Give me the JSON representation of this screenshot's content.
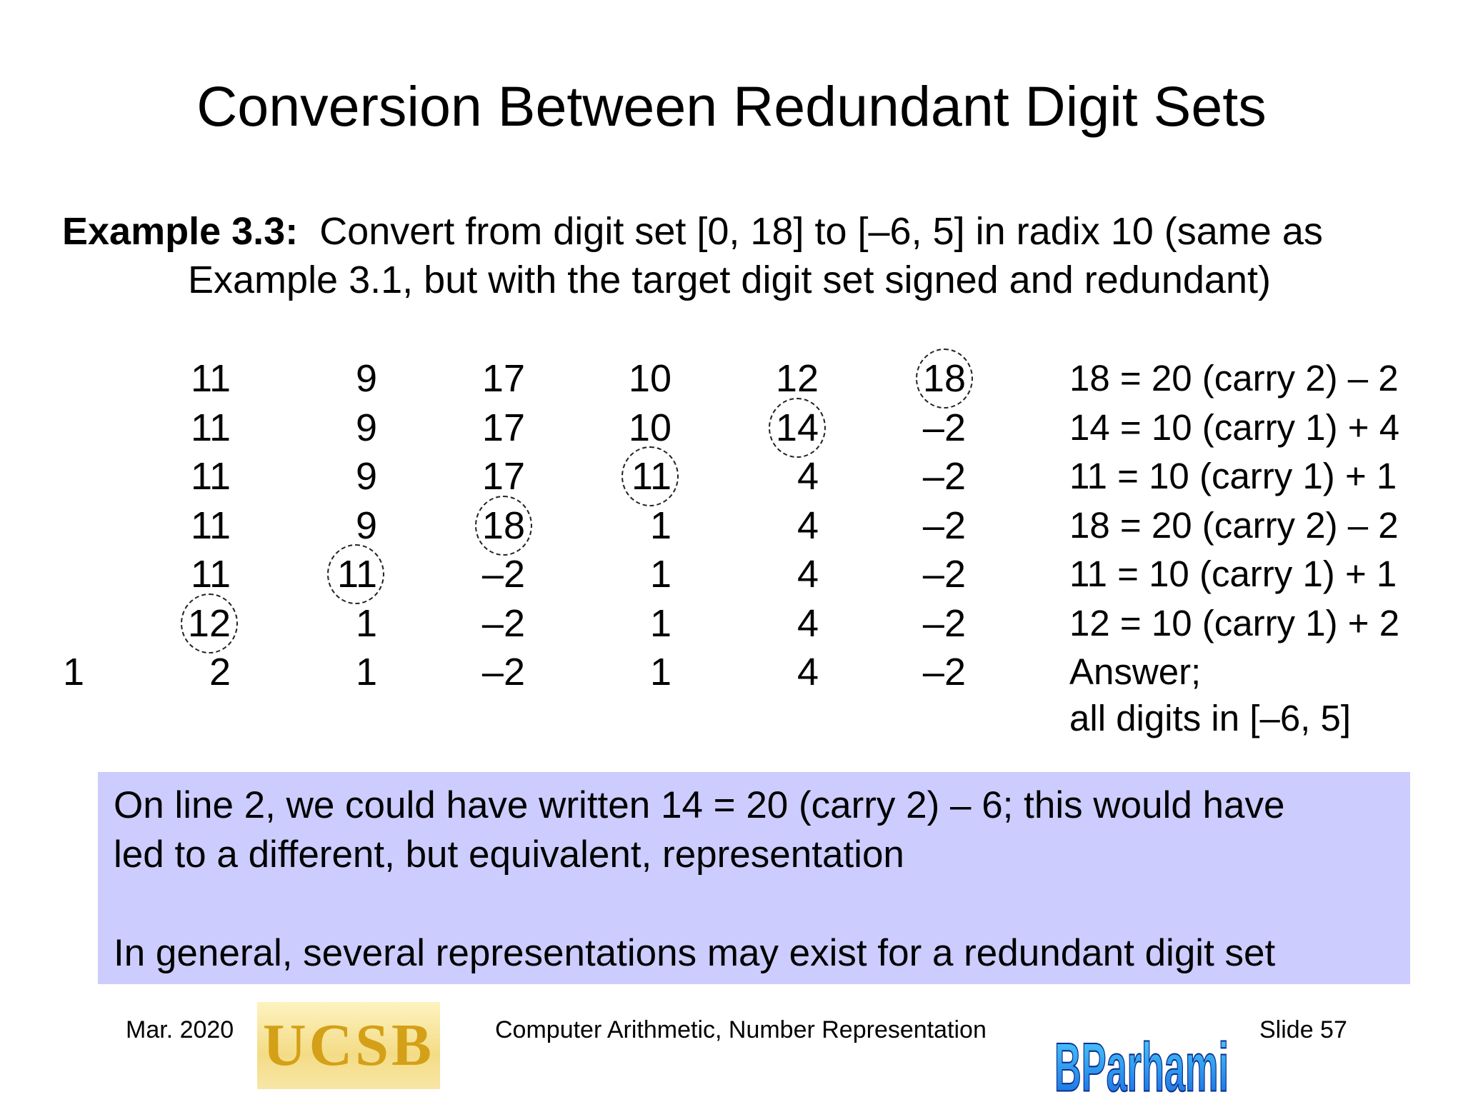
{
  "title": "Conversion Between Redundant Digit Sets",
  "example": {
    "label": "Example 3.3:",
    "line1": "Convert from digit set [0, 18] to [–6, 5] in radix 10 (same as",
    "line2": "Example 3.1, but with the target digit set signed and redundant)"
  },
  "table": {
    "rows": [
      [
        "",
        "11",
        "9",
        "17",
        "10",
        "12",
        "18"
      ],
      [
        "",
        "11",
        "9",
        "17",
        "10",
        "14",
        "–2"
      ],
      [
        "",
        "11",
        "9",
        "17",
        "11",
        "4",
        "–2"
      ],
      [
        "",
        "11",
        "9",
        "18",
        "1",
        "4",
        "–2"
      ],
      [
        "",
        "11",
        "11",
        "–2",
        "1",
        "4",
        "–2"
      ],
      [
        "",
        "12",
        "1",
        "–2",
        "1",
        "4",
        "–2"
      ],
      [
        "1",
        "2",
        "1",
        "–2",
        "1",
        "4",
        "–2"
      ]
    ],
    "explanations": [
      "18 = 20 (carry 2) – 2",
      "14 = 10 (carry 1) + 4",
      "11 = 10 (carry 1) + 1",
      "18 = 20 (carry 2) – 2",
      "11 = 10 (carry 1) + 1",
      "12 = 10 (carry 1) + 2",
      "Answer;",
      "all digits in [–6, 5]"
    ]
  },
  "note": {
    "line1": "On line 2, we could have written 14 = 20 (carry 2) – 6; this would have",
    "line2": "led to a different, but equivalent, representation",
    "line3": "In general, several representations may exist for a redundant digit set"
  },
  "footer": {
    "date": "Mar. 2020",
    "ucsb_logo_text": "UCSB",
    "course": "Computer Arithmetic, Number Representation",
    "parhami_logo_text": "BParhami",
    "slide": "Slide 57"
  }
}
